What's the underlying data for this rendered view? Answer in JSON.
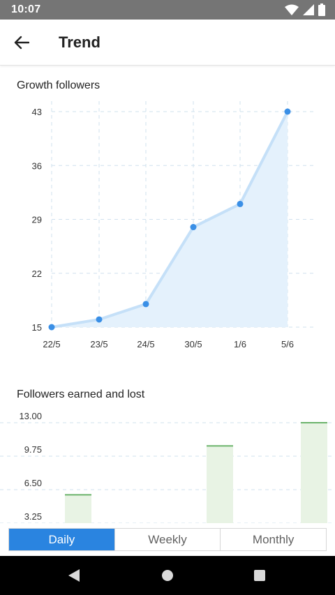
{
  "status_bar": {
    "time": "10:07",
    "icons": [
      "wifi-icon",
      "signal-icon",
      "battery-icon"
    ]
  },
  "app_bar": {
    "title": "Trend",
    "back_icon": "arrow-left-icon"
  },
  "growth_section": {
    "title": "Growth followers"
  },
  "earned_lost_section": {
    "title": "Followers earned and lost"
  },
  "tabs": [
    {
      "label": "Daily",
      "active": true
    },
    {
      "label": "Weekly",
      "active": false
    },
    {
      "label": "Monthly",
      "active": false
    }
  ],
  "nav_bar": {
    "icons": [
      "back-triangle-icon",
      "home-circle-icon",
      "recents-square-icon"
    ]
  },
  "colors": {
    "accent": "#2a84e0",
    "line": "#c5e0f8",
    "area": "#e4f1fc",
    "point": "#3a8fe6",
    "bar_fill": "#e8f3e4",
    "bar_top": "#6bb36b",
    "grid": "#cfe0ee"
  },
  "chart_data": [
    {
      "type": "area",
      "title": "Growth followers",
      "categories": [
        "22/5",
        "23/5",
        "24/5",
        "30/5",
        "1/6",
        "5/6"
      ],
      "values": [
        15,
        16,
        18,
        28,
        31,
        43
      ],
      "yticks": [
        "43",
        "36",
        "29",
        "22",
        "15"
      ],
      "ylim": [
        15,
        43
      ],
      "grid": true
    },
    {
      "type": "bar",
      "title": "Followers earned and lost",
      "values": [
        6,
        10.75,
        13
      ],
      "yticks": [
        "13.00",
        "9.75",
        "6.50",
        "3.25"
      ],
      "ylim": [
        3.25,
        13
      ],
      "grid": true
    }
  ]
}
